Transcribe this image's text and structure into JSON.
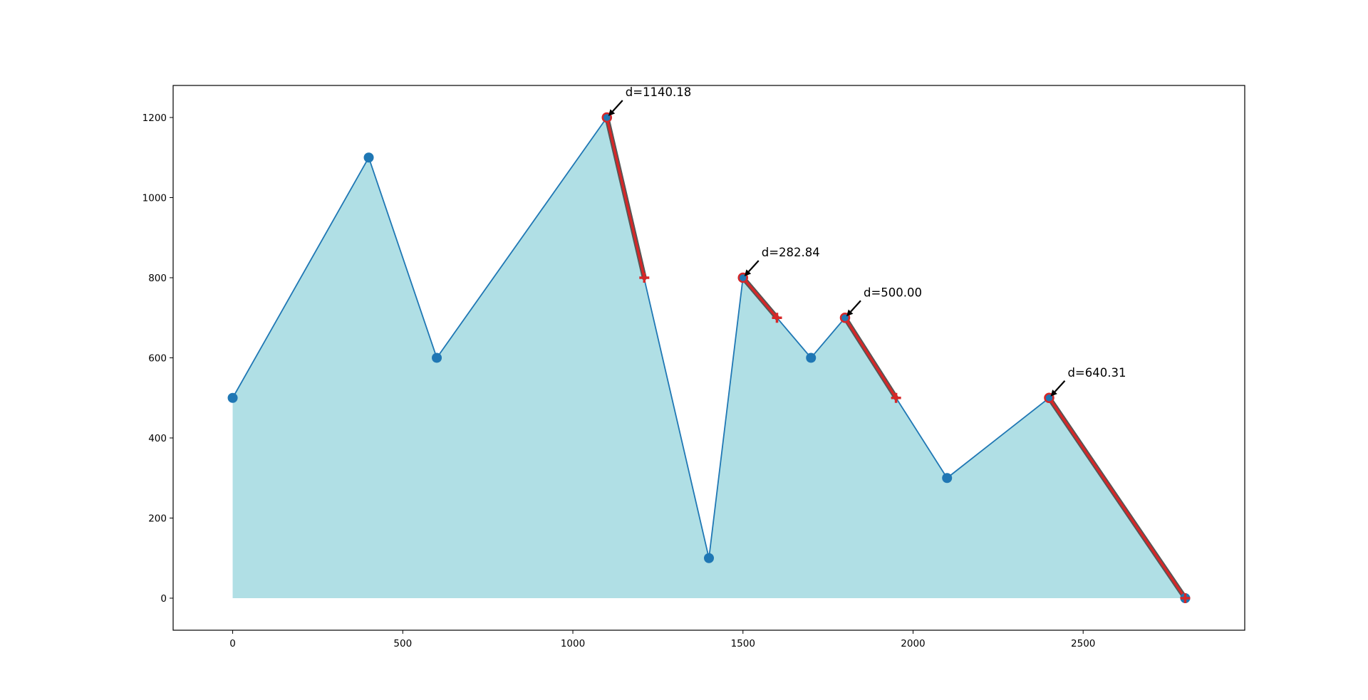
{
  "chart_data": {
    "type": "area",
    "title": "",
    "xlabel": "",
    "ylabel": "",
    "xlim": [
      -175,
      2975
    ],
    "ylim": [
      -80,
      1280
    ],
    "xticks": [
      0,
      500,
      1000,
      1500,
      2000,
      2500
    ],
    "yticks": [
      0,
      200,
      400,
      600,
      800,
      1000,
      1200
    ],
    "grid": false,
    "legend": "none",
    "series": [
      {
        "values_x": [
          0,
          400,
          600,
          1100,
          1400,
          1500,
          1700,
          1800,
          2100,
          2400,
          2800
        ],
        "values_y": [
          500,
          1100,
          600,
          1200,
          100,
          800,
          600,
          700,
          300,
          500,
          0
        ]
      }
    ],
    "highlight_segments": [
      {
        "start": [
          1100,
          1200
        ],
        "end": [
          1210,
          800
        ]
      },
      {
        "start": [
          1500,
          800
        ],
        "end": [
          1600,
          700
        ]
      },
      {
        "start": [
          1800,
          700
        ],
        "end": [
          1950,
          500
        ]
      },
      {
        "start": [
          2400,
          500
        ],
        "end": [
          2800,
          0
        ]
      }
    ],
    "annotations": [
      {
        "text": "d=1140.18",
        "point": [
          1100,
          1200
        ]
      },
      {
        "text": "d=282.84",
        "point": [
          1500,
          800
        ]
      },
      {
        "text": "d=500.00",
        "point": [
          1800,
          700
        ]
      },
      {
        "text": "d=640.31",
        "point": [
          2400,
          500
        ]
      }
    ],
    "colors": {
      "line": "#1f77b4",
      "marker": "#1f77b4",
      "fill": "#b0dfe5",
      "highlight": "#d62728",
      "highlight_under": "#555555",
      "arrow": "#000000"
    }
  }
}
